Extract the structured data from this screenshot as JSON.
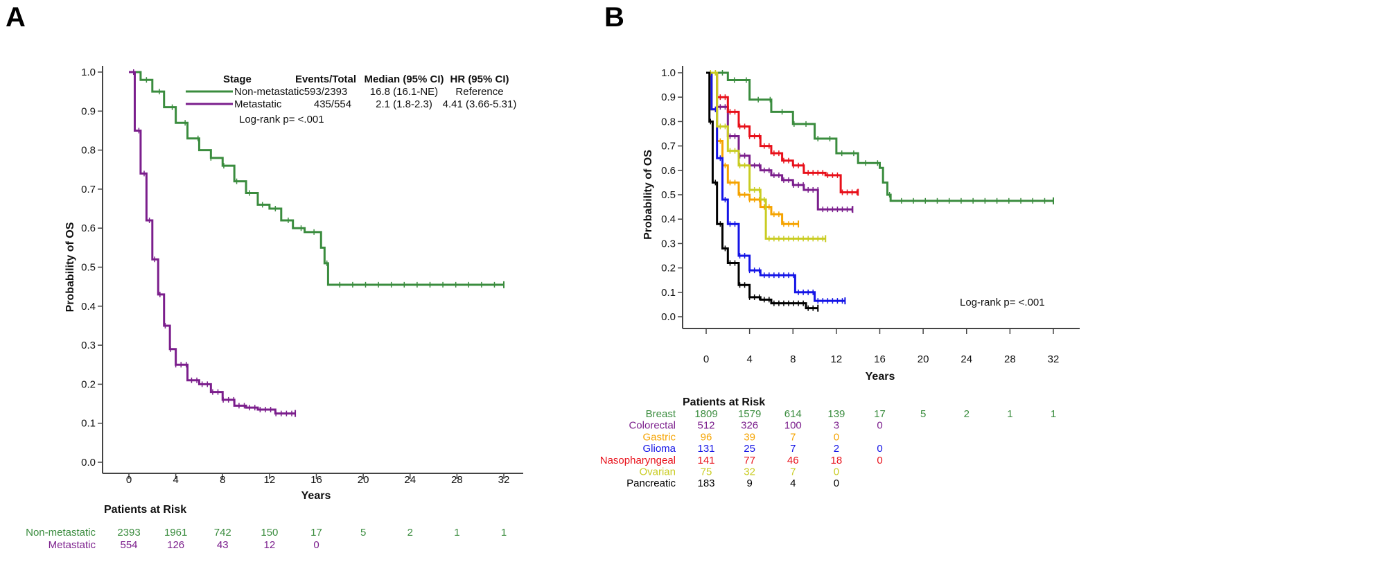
{
  "chart_data": [
    {
      "panel": "A",
      "type": "line",
      "step": true,
      "ylabel": "Probability of OS",
      "xlabel": "Years",
      "xlim": [
        0,
        32
      ],
      "ylim": [
        0,
        1
      ],
      "xticks": [
        0,
        4,
        8,
        12,
        16,
        20,
        24,
        28,
        32
      ],
      "yticks": [
        "0.0",
        "0.1",
        "0.2",
        "0.3",
        "0.4",
        "0.5",
        "0.6",
        "0.7",
        "0.8",
        "0.9",
        "1.0"
      ],
      "legend": {
        "placement": "top-right",
        "headers": [
          "Stage",
          "Events/Total",
          "Median (95% CI)",
          "HR (95% CI)"
        ],
        "rows": [
          {
            "name": "Non-metastatic",
            "events_total": "593/2393",
            "median": "16.8 (16.1-NE)",
            "hr": "Reference"
          },
          {
            "name": "Metastatic",
            "events_total": "435/554",
            "median": "2.1 (1.8-2.3)",
            "hr": "4.41 (3.66-5.31)"
          }
        ]
      },
      "annotation": "Log-rank p= <.001",
      "series": [
        {
          "name": "Non-metastatic",
          "color": "#3a8c3e",
          "x": [
            0,
            1,
            2,
            3,
            4,
            5,
            6,
            7,
            8,
            9,
            10,
            11,
            12,
            13,
            14,
            15,
            16.2,
            16.4,
            16.7,
            17,
            32
          ],
          "y": [
            1,
            0.98,
            0.95,
            0.91,
            0.87,
            0.83,
            0.8,
            0.78,
            0.76,
            0.72,
            0.69,
            0.66,
            0.65,
            0.62,
            0.6,
            0.59,
            0.59,
            0.55,
            0.51,
            0.455,
            0.455
          ]
        },
        {
          "name": "Metastatic",
          "color": "#7b1e8c",
          "x": [
            0,
            0.5,
            1,
            1.5,
            2,
            2.5,
            3,
            3.5,
            4,
            5,
            6,
            7,
            8,
            9,
            10,
            11,
            12,
            12.5,
            14.2
          ],
          "y": [
            1,
            0.85,
            0.74,
            0.62,
            0.52,
            0.43,
            0.35,
            0.29,
            0.25,
            0.21,
            0.2,
            0.18,
            0.16,
            0.145,
            0.14,
            0.135,
            0.135,
            0.125,
            0.125
          ]
        }
      ],
      "risk_table": {
        "title": "Patients at Risk",
        "rows": [
          {
            "name": "Non-metastatic",
            "color": "#3a8c3e",
            "values": [
              "2393",
              "1961",
              "742",
              "150",
              "17",
              "5",
              "2",
              "1",
              "1"
            ]
          },
          {
            "name": "Metastatic",
            "color": "#7b1e8c",
            "values": [
              "554",
              "126",
              "43",
              "12",
              "0"
            ]
          }
        ]
      }
    },
    {
      "panel": "B",
      "type": "line",
      "step": true,
      "ylabel": "Probability of OS",
      "xlabel": "Years",
      "xlim": [
        0,
        32
      ],
      "ylim": [
        0,
        1
      ],
      "xticks": [
        0,
        4,
        8,
        12,
        16,
        20,
        24,
        28,
        32
      ],
      "yticks": [
        "0.0",
        "0.1",
        "0.2",
        "0.3",
        "0.4",
        "0.5",
        "0.6",
        "0.7",
        "0.8",
        "0.9",
        "1.0"
      ],
      "annotation": "Log-rank p= <.001",
      "series": [
        {
          "name": "Breast",
          "color": "#3a8c3e",
          "x": [
            0,
            2,
            4,
            6,
            8,
            10,
            12,
            14,
            16,
            16.3,
            16.7,
            17,
            32
          ],
          "y": [
            1,
            0.97,
            0.89,
            0.84,
            0.79,
            0.73,
            0.67,
            0.63,
            0.61,
            0.55,
            0.5,
            0.475,
            0.475
          ]
        },
        {
          "name": "Colorectal",
          "color": "#7b1e8c",
          "x": [
            0,
            1,
            2,
            3,
            4,
            5,
            6,
            7,
            8,
            9,
            10,
            10.3,
            13.5
          ],
          "y": [
            1,
            0.86,
            0.74,
            0.66,
            0.62,
            0.6,
            0.58,
            0.56,
            0.54,
            0.52,
            0.52,
            0.44,
            0.44
          ]
        },
        {
          "name": "Gastric",
          "color": "#f5a300",
          "x": [
            0,
            0.5,
            1,
            1.5,
            2,
            3,
            4,
            5,
            6,
            7,
            8.5
          ],
          "y": [
            1,
            0.85,
            0.72,
            0.62,
            0.55,
            0.5,
            0.48,
            0.45,
            0.42,
            0.38,
            0.38
          ]
        },
        {
          "name": "Glioma",
          "color": "#1414e6",
          "x": [
            0,
            0.5,
            1,
            1.5,
            2,
            3,
            4,
            5,
            8,
            8.2,
            9.8,
            10,
            12.8
          ],
          "y": [
            1,
            0.85,
            0.65,
            0.48,
            0.38,
            0.25,
            0.19,
            0.17,
            0.17,
            0.1,
            0.1,
            0.065,
            0.065
          ]
        },
        {
          "name": "Nasopharyngeal",
          "color": "#e8101a",
          "x": [
            0,
            1,
            2,
            3,
            4,
            5,
            6,
            7,
            8,
            9,
            11,
            12.2,
            12.4,
            14
          ],
          "y": [
            1,
            0.9,
            0.84,
            0.78,
            0.74,
            0.7,
            0.67,
            0.64,
            0.62,
            0.59,
            0.58,
            0.58,
            0.51,
            0.51
          ]
        },
        {
          "name": "Ovarian",
          "color": "#c9cc22",
          "x": [
            0,
            1,
            2,
            3,
            4,
            5,
            5.5,
            11
          ],
          "y": [
            1,
            0.78,
            0.68,
            0.62,
            0.52,
            0.48,
            0.32,
            0.32
          ]
        },
        {
          "name": "Pancreatic",
          "color": "#000000",
          "x": [
            0,
            0.3,
            0.6,
            1,
            1.5,
            2,
            3,
            4,
            5,
            6,
            9,
            9.2,
            10.3
          ],
          "y": [
            1,
            0.8,
            0.55,
            0.38,
            0.28,
            0.22,
            0.13,
            0.08,
            0.07,
            0.055,
            0.055,
            0.035,
            0.035
          ]
        }
      ],
      "risk_table": {
        "title": "Patients at Risk",
        "rows": [
          {
            "name": "Breast",
            "color": "#3a8c3e",
            "values": [
              "1809",
              "1579",
              "614",
              "139",
              "17",
              "5",
              "2",
              "1",
              "1"
            ]
          },
          {
            "name": "Colorectal",
            "color": "#7b1e8c",
            "values": [
              "512",
              "326",
              "100",
              "3",
              "0"
            ]
          },
          {
            "name": "Gastric",
            "color": "#f5a300",
            "values": [
              "96",
              "39",
              "7",
              "0"
            ]
          },
          {
            "name": "Glioma",
            "color": "#1414e6",
            "values": [
              "131",
              "25",
              "7",
              "2",
              "0"
            ]
          },
          {
            "name": "Nasopharyngeal",
            "color": "#e8101a",
            "values": [
              "141",
              "77",
              "46",
              "18",
              "0"
            ]
          },
          {
            "name": "Ovarian",
            "color": "#c9cc22",
            "values": [
              "75",
              "32",
              "7",
              "0"
            ]
          },
          {
            "name": "Pancreatic",
            "color": "#000000",
            "values": [
              "183",
              "9",
              "4",
              "0"
            ]
          }
        ]
      }
    }
  ]
}
